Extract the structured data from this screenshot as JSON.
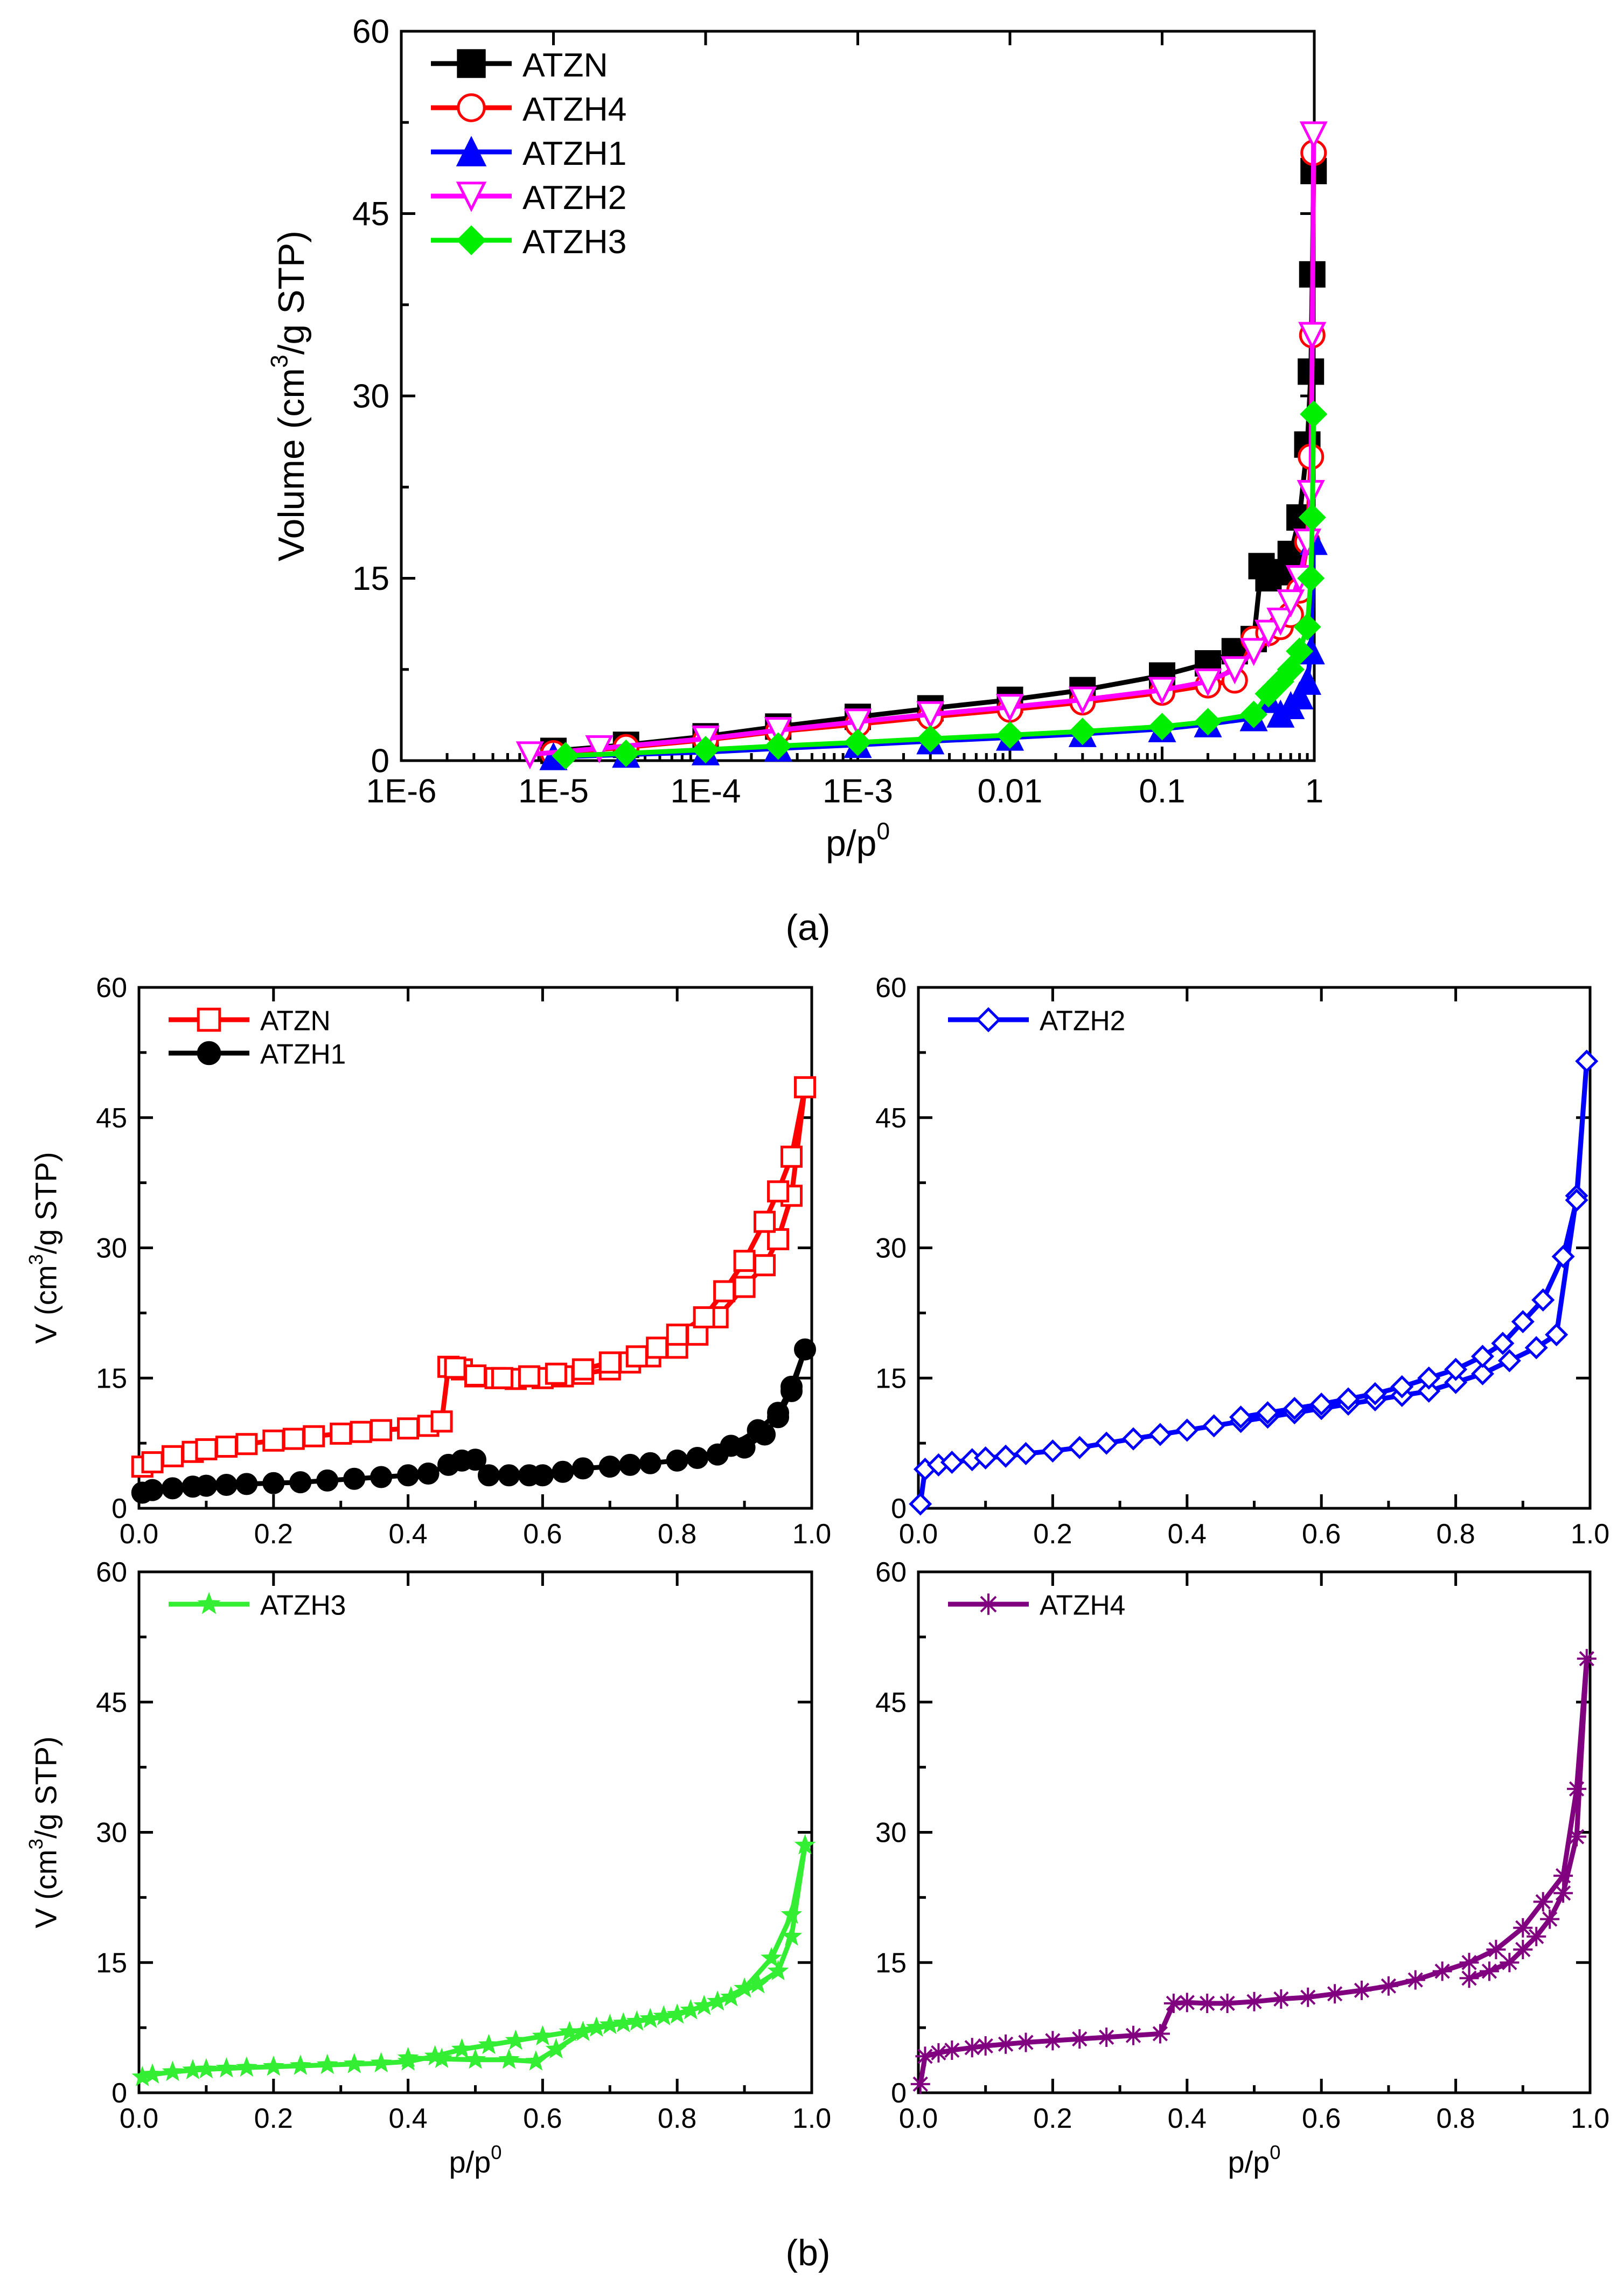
{
  "chart_data": [
    {
      "type": "line",
      "xscale": "log",
      "title": "",
      "xlabel_base": "p/p",
      "xlabel_sup": "0",
      "ylabel_pre": "Volume (cm",
      "ylabel_sup": "3",
      "ylabel_post": "/g STP)",
      "xlim": [
        1e-06,
        1
      ],
      "ylim": [
        0,
        60
      ],
      "xtick_values": [
        1e-06,
        1e-05,
        0.0001,
        0.001,
        0.01,
        0.1,
        1
      ],
      "xtick_labels": [
        "1E-6",
        "1E-5",
        "1E-4",
        "1E-3",
        "0.01",
        "0.1",
        "1"
      ],
      "yticks": [
        0,
        15,
        30,
        45,
        60
      ],
      "legend_position": "top-left",
      "caption": "(a)",
      "series": [
        {
          "name": "ATZN",
          "color": "#000000",
          "marker": "square-filled",
          "x": [
            1e-05,
            3e-05,
            0.0001,
            0.0003,
            0.001,
            0.003,
            0.01,
            0.03,
            0.1,
            0.2,
            0.3,
            0.4,
            0.45,
            0.5,
            0.6,
            0.7,
            0.8,
            0.9,
            0.95,
            0.97,
            0.99
          ],
          "y": [
            0.8,
            1.3,
            2.0,
            2.8,
            3.6,
            4.3,
            5.0,
            5.8,
            7.0,
            8.0,
            9.0,
            10.0,
            16.0,
            15.0,
            15.5,
            17.0,
            20.0,
            26.0,
            32.0,
            40.0,
            48.5
          ]
        },
        {
          "name": "ATZH4",
          "color": "#ff0000",
          "marker": "circle-open",
          "x": [
            1e-05,
            3e-05,
            0.0001,
            0.0003,
            0.001,
            0.003,
            0.01,
            0.03,
            0.1,
            0.2,
            0.3,
            0.4,
            0.5,
            0.6,
            0.7,
            0.8,
            0.9,
            0.95,
            0.97,
            0.99
          ],
          "y": [
            0.6,
            1.1,
            1.7,
            2.4,
            3.0,
            3.6,
            4.2,
            4.8,
            5.6,
            6.2,
            6.6,
            10.0,
            10.5,
            11.0,
            12.0,
            14.0,
            18.0,
            25.0,
            35.0,
            50.0
          ]
        },
        {
          "name": "ATZH1",
          "color": "#0000ff",
          "marker": "triangle-up-filled",
          "x": [
            1e-05,
            3e-05,
            0.0001,
            0.0003,
            0.001,
            0.003,
            0.01,
            0.03,
            0.1,
            0.2,
            0.4,
            0.5,
            0.6,
            0.7,
            0.8,
            0.9,
            0.95,
            0.99
          ],
          "y": [
            0.3,
            0.5,
            0.7,
            1.0,
            1.3,
            1.6,
            1.9,
            2.2,
            2.6,
            3.0,
            3.5,
            5.0,
            3.8,
            4.5,
            5.3,
            6.5,
            9.0,
            18.0
          ]
        },
        {
          "name": "ATZH2",
          "color": "#ff00ff",
          "marker": "triangle-down-open",
          "x": [
            7e-06,
            2e-05,
            0.0001,
            0.0003,
            0.001,
            0.003,
            0.01,
            0.03,
            0.1,
            0.2,
            0.3,
            0.4,
            0.5,
            0.6,
            0.7,
            0.8,
            0.9,
            0.95,
            0.97,
            0.99
          ],
          "y": [
            0.5,
            1.0,
            1.8,
            2.5,
            3.2,
            3.8,
            4.4,
            5.0,
            5.8,
            6.5,
            7.5,
            9.0,
            10.5,
            11.5,
            13.0,
            15.0,
            18.0,
            22.0,
            35.0,
            51.5
          ]
        },
        {
          "name": "ATZH3",
          "color": "#00ee00",
          "marker": "diamond-filled",
          "x": [
            1.2e-05,
            3e-05,
            0.0001,
            0.0003,
            0.001,
            0.003,
            0.01,
            0.03,
            0.1,
            0.2,
            0.4,
            0.5,
            0.6,
            0.7,
            0.8,
            0.9,
            0.95,
            0.97,
            0.99
          ],
          "y": [
            0.4,
            0.6,
            0.9,
            1.2,
            1.5,
            1.8,
            2.1,
            2.4,
            2.8,
            3.2,
            3.8,
            5.5,
            6.5,
            7.5,
            9.0,
            11.0,
            15.0,
            20.0,
            28.5
          ]
        }
      ]
    },
    {
      "type": "line",
      "xlabel_base": "",
      "xlabel_sup": "",
      "ylabel_pre": "V (cm",
      "ylabel_sup": "3",
      "ylabel_post": "/g STP)",
      "xlim": [
        0,
        1
      ],
      "ylim": [
        0,
        60
      ],
      "xtick_values": [
        0,
        0.2,
        0.4,
        0.6,
        0.8,
        1.0
      ],
      "xtick_labels": [
        "0.0",
        "0.2",
        "0.4",
        "0.6",
        "0.8",
        "1.0"
      ],
      "yticks": [
        0,
        15,
        30,
        45,
        60
      ],
      "legend_position": "top-left",
      "series": [
        {
          "name": "ATZN",
          "color": "#ff0000",
          "marker": "square-open",
          "x": [
            0.005,
            0.02,
            0.05,
            0.08,
            0.1,
            0.13,
            0.16,
            0.2,
            0.23,
            0.26,
            0.3,
            0.33,
            0.36,
            0.4,
            0.43,
            0.45,
            0.46,
            0.48,
            0.5,
            0.53,
            0.56,
            0.6,
            0.63,
            0.66,
            0.7,
            0.73,
            0.76,
            0.8,
            0.83,
            0.86,
            0.9,
            0.93,
            0.95,
            0.97,
            0.99,
            0.97,
            0.95,
            0.93,
            0.9,
            0.87,
            0.84,
            0.8,
            0.77,
            0.74,
            0.7,
            0.66,
            0.62,
            0.58,
            0.54,
            0.5,
            0.47
          ],
          "y": [
            4.8,
            5.3,
            6.0,
            6.5,
            6.8,
            7.1,
            7.4,
            7.8,
            8.0,
            8.3,
            8.6,
            8.8,
            9.0,
            9.2,
            9.5,
            10.0,
            16.3,
            16.0,
            15.2,
            15.0,
            14.9,
            15.0,
            15.2,
            15.5,
            16.0,
            16.8,
            17.5,
            18.5,
            20.0,
            22.0,
            25.5,
            28.0,
            31.0,
            36.0,
            48.5,
            40.5,
            36.5,
            33.0,
            28.5,
            25.0,
            22.0,
            20.0,
            18.5,
            17.5,
            16.8,
            16.0,
            15.5,
            15.2,
            15.0,
            15.3,
            16.2
          ]
        },
        {
          "name": "ATZH1",
          "color": "#000000",
          "marker": "circle-filled",
          "x": [
            0.005,
            0.02,
            0.05,
            0.08,
            0.1,
            0.13,
            0.16,
            0.2,
            0.24,
            0.28,
            0.32,
            0.36,
            0.4,
            0.43,
            0.46,
            0.48,
            0.5,
            0.52,
            0.55,
            0.58,
            0.6,
            0.63,
            0.66,
            0.7,
            0.73,
            0.76,
            0.8,
            0.83,
            0.86,
            0.9,
            0.93,
            0.95,
            0.97,
            0.99,
            0.97,
            0.95,
            0.92,
            0.88
          ],
          "y": [
            1.8,
            2.1,
            2.3,
            2.5,
            2.6,
            2.7,
            2.8,
            2.9,
            3.0,
            3.2,
            3.4,
            3.6,
            3.8,
            4.0,
            5.0,
            5.5,
            5.6,
            3.8,
            3.8,
            3.8,
            3.8,
            4.2,
            4.6,
            4.8,
            5.0,
            5.2,
            5.5,
            5.8,
            6.2,
            7.0,
            8.5,
            10.5,
            13.5,
            18.3,
            14.0,
            11.0,
            9.0,
            7.2
          ]
        }
      ]
    },
    {
      "type": "line",
      "xlabel_base": "",
      "xlabel_sup": "",
      "ylabel_pre": "",
      "ylabel_sup": "",
      "ylabel_post": "",
      "xlim": [
        0,
        1
      ],
      "ylim": [
        0,
        60
      ],
      "xtick_values": [
        0,
        0.2,
        0.4,
        0.6,
        0.8,
        1.0
      ],
      "xtick_labels": [
        "0.0",
        "0.2",
        "0.4",
        "0.6",
        "0.8",
        "1.0"
      ],
      "yticks": [
        0,
        15,
        30,
        45,
        60
      ],
      "legend_position": "top-left",
      "series": [
        {
          "name": "ATZH2",
          "color": "#0000ff",
          "marker": "diamond-open",
          "x": [
            0.003,
            0.01,
            0.03,
            0.05,
            0.08,
            0.1,
            0.13,
            0.16,
            0.2,
            0.24,
            0.28,
            0.32,
            0.36,
            0.4,
            0.44,
            0.48,
            0.52,
            0.56,
            0.6,
            0.64,
            0.68,
            0.72,
            0.76,
            0.8,
            0.84,
            0.88,
            0.92,
            0.95,
            0.98,
            0.995,
            0.98,
            0.96,
            0.93,
            0.9,
            0.87,
            0.84,
            0.8,
            0.76,
            0.72,
            0.68,
            0.64,
            0.6,
            0.56,
            0.52,
            0.48
          ],
          "y": [
            0.5,
            4.5,
            5.0,
            5.3,
            5.6,
            5.8,
            6.0,
            6.3,
            6.6,
            7.0,
            7.5,
            8.0,
            8.5,
            9.0,
            9.5,
            10.0,
            10.5,
            11.0,
            11.5,
            12.0,
            12.5,
            13.0,
            13.5,
            14.5,
            15.5,
            17.0,
            18.5,
            20.0,
            36.0,
            51.5,
            35.5,
            29.0,
            24.0,
            21.5,
            19.0,
            17.5,
            16.0,
            15.0,
            14.0,
            13.2,
            12.6,
            12.0,
            11.5,
            11.0,
            10.5
          ]
        }
      ]
    },
    {
      "type": "line",
      "xlabel_base": "p/p",
      "xlabel_sup": "0",
      "ylabel_pre": "V (cm",
      "ylabel_sup": "3",
      "ylabel_post": "/g STP)",
      "xlim": [
        0,
        1
      ],
      "ylim": [
        0,
        60
      ],
      "xtick_values": [
        0,
        0.2,
        0.4,
        0.6,
        0.8,
        1.0
      ],
      "xtick_labels": [
        "0.0",
        "0.2",
        "0.4",
        "0.6",
        "0.8",
        "1.0"
      ],
      "yticks": [
        0,
        15,
        30,
        45,
        60
      ],
      "legend_position": "top-left",
      "series": [
        {
          "name": "ATZH3",
          "color": "#33ee33",
          "marker": "star-filled",
          "x": [
            0.005,
            0.02,
            0.05,
            0.08,
            0.1,
            0.13,
            0.16,
            0.2,
            0.24,
            0.28,
            0.32,
            0.36,
            0.4,
            0.44,
            0.48,
            0.52,
            0.56,
            0.6,
            0.64,
            0.68,
            0.72,
            0.76,
            0.8,
            0.84,
            0.88,
            0.92,
            0.95,
            0.97,
            0.99,
            0.97,
            0.94,
            0.9,
            0.86,
            0.82,
            0.78,
            0.74,
            0.7,
            0.66,
            0.62,
            0.59,
            0.55,
            0.5,
            0.45,
            0.4
          ],
          "y": [
            1.8,
            2.1,
            2.4,
            2.6,
            2.7,
            2.8,
            2.9,
            3.0,
            3.1,
            3.2,
            3.3,
            3.4,
            3.6,
            4.2,
            5.0,
            5.5,
            6.0,
            6.5,
            7.0,
            7.5,
            8.0,
            8.5,
            9.0,
            10.0,
            11.0,
            12.5,
            14.0,
            18.0,
            28.5,
            20.5,
            15.5,
            12.0,
            10.5,
            9.5,
            8.8,
            8.2,
            7.8,
            7.0,
            5.0,
            3.6,
            3.8,
            3.8,
            3.9,
            4.0
          ]
        }
      ]
    },
    {
      "type": "line",
      "xlabel_base": "p/p",
      "xlabel_sup": "0",
      "ylabel_pre": "",
      "ylabel_sup": "",
      "ylabel_post": "",
      "xlim": [
        0,
        1
      ],
      "ylim": [
        0,
        60
      ],
      "xtick_values": [
        0,
        0.2,
        0.4,
        0.6,
        0.8,
        1.0
      ],
      "xtick_labels": [
        "0.0",
        "0.2",
        "0.4",
        "0.6",
        "0.8",
        "1.0"
      ],
      "yticks": [
        0,
        15,
        30,
        45,
        60
      ],
      "legend_position": "top-left",
      "series": [
        {
          "name": "ATZH4",
          "color": "#800080",
          "marker": "asterisk",
          "x": [
            0.003,
            0.01,
            0.03,
            0.05,
            0.08,
            0.1,
            0.13,
            0.16,
            0.2,
            0.24,
            0.28,
            0.32,
            0.36,
            0.38,
            0.4,
            0.43,
            0.46,
            0.5,
            0.54,
            0.58,
            0.62,
            0.66,
            0.7,
            0.74,
            0.78,
            0.82,
            0.86,
            0.9,
            0.93,
            0.96,
            0.98,
            0.995,
            0.98,
            0.96,
            0.94,
            0.92,
            0.9,
            0.88,
            0.85,
            0.82
          ],
          "y": [
            1.0,
            4.2,
            4.6,
            4.9,
            5.2,
            5.4,
            5.6,
            5.8,
            6.0,
            6.2,
            6.4,
            6.6,
            6.8,
            10.3,
            10.4,
            10.3,
            10.3,
            10.5,
            10.8,
            11.0,
            11.4,
            11.8,
            12.3,
            13.0,
            14.0,
            15.0,
            16.5,
            19.0,
            22.0,
            25.0,
            35.0,
            50.0,
            29.5,
            23.0,
            20.0,
            18.0,
            16.5,
            15.0,
            14.0,
            13.2
          ]
        }
      ]
    }
  ],
  "captions": {
    "a": "(a)",
    "b": "(b)"
  }
}
